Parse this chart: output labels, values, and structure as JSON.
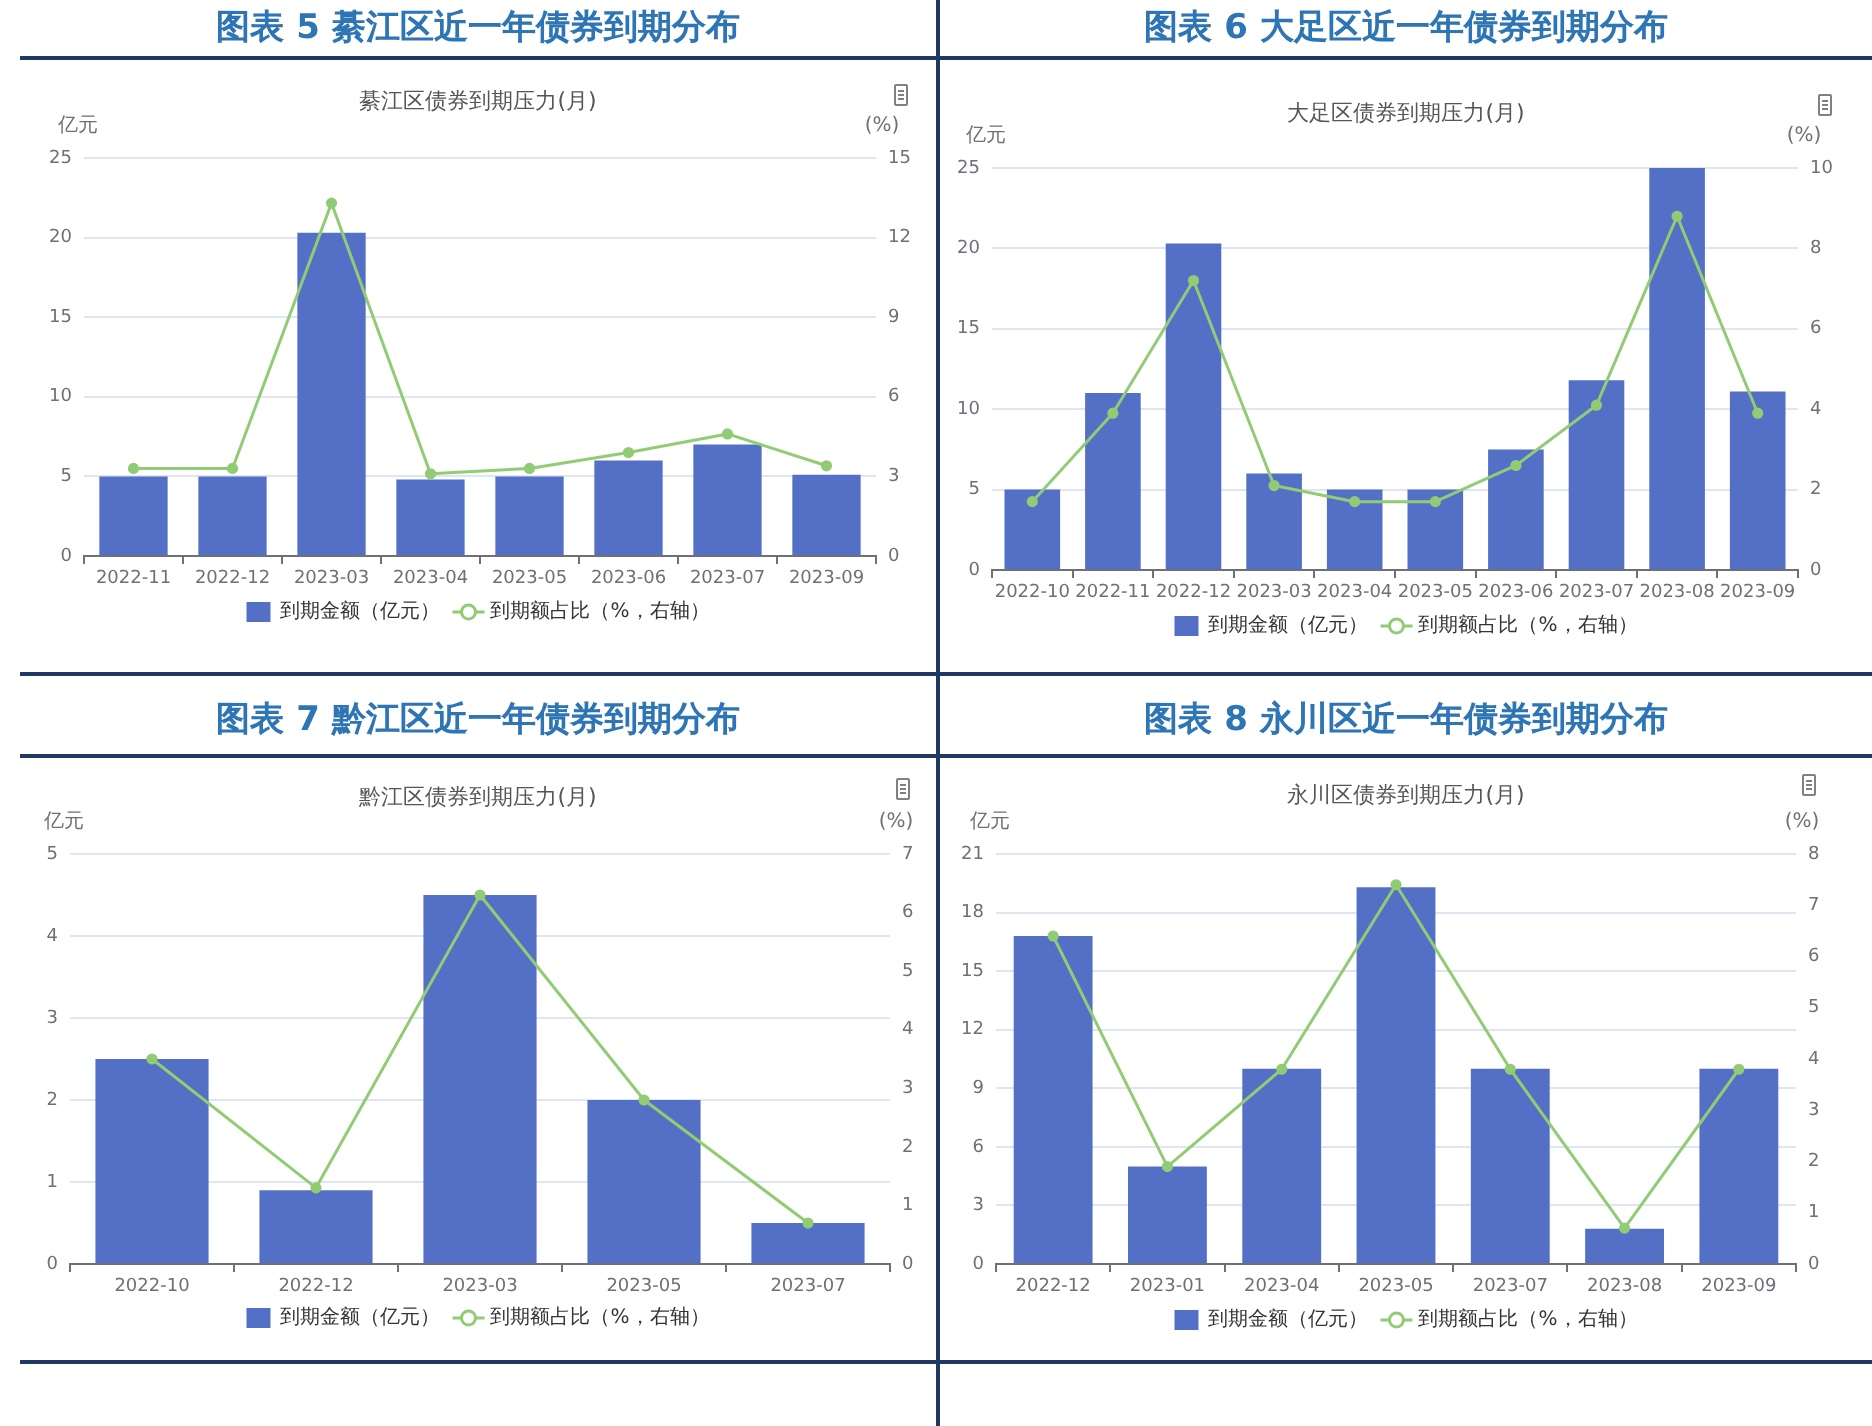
{
  "chart_data": [
    {
      "type": "bar",
      "title": "图表 5 綦江区近一年债券到期分布",
      "subtitle": "綦江区债券到期压力(月)",
      "ylabel": "亿元",
      "y2label": "(%)",
      "categories": [
        "2022-11",
        "2022-12",
        "2023-03",
        "2023-04",
        "2023-05",
        "2023-06",
        "2023-07",
        "2023-09"
      ],
      "series": [
        {
          "name": "到期金额（亿元）",
          "color": "#5470c6",
          "values": [
            5,
            5,
            20.3,
            4.8,
            5,
            6,
            7,
            5.1
          ]
        },
        {
          "name": "到期额占比（%，右轴）",
          "type": "line",
          "axis": "y2",
          "color": "#91cc75",
          "values": [
            3.3,
            3.3,
            13.3,
            3.1,
            3.3,
            3.9,
            4.6,
            3.4
          ]
        }
      ],
      "ylim": [
        0,
        25
      ],
      "yticks": [
        0,
        5,
        10,
        15,
        20,
        25
      ],
      "y2lim": [
        0,
        15
      ],
      "y2ticks": [
        0,
        3,
        6,
        9,
        12,
        15
      ],
      "grid": "y",
      "legend": "bottom",
      "marker": "circle"
    },
    {
      "type": "bar",
      "title": "图表 6 大足区近一年债券到期分布",
      "subtitle": "大足区债券到期压力(月)",
      "ylabel": "亿元",
      "y2label": "(%)",
      "categories": [
        "2022-10",
        "2022-11",
        "2022-12",
        "2023-03",
        "2023-04",
        "2023-05",
        "2023-06",
        "2023-07",
        "2023-08",
        "2023-09"
      ],
      "series": [
        {
          "name": "到期金额（亿元）",
          "color": "#5470c6",
          "values": [
            5,
            11,
            20.3,
            6,
            5,
            5,
            7.5,
            11.8,
            25,
            11.1
          ]
        },
        {
          "name": "到期额占比（%，右轴）",
          "type": "line",
          "axis": "y2",
          "color": "#91cc75",
          "values": [
            1.7,
            3.9,
            7.2,
            2.1,
            1.7,
            1.7,
            2.6,
            4.1,
            8.8,
            3.9
          ]
        }
      ],
      "ylim": [
        0,
        25
      ],
      "yticks": [
        0,
        5,
        10,
        15,
        20,
        25
      ],
      "y2lim": [
        0,
        10
      ],
      "y2ticks": [
        0,
        2,
        4,
        6,
        8,
        10
      ],
      "grid": "y",
      "legend": "bottom",
      "marker": "circle"
    },
    {
      "type": "bar",
      "title": "图表 7 黔江区近一年债券到期分布",
      "subtitle": "黔江区债券到期压力(月)",
      "ylabel": "亿元",
      "y2label": "(%)",
      "categories": [
        "2022-10",
        "2022-12",
        "2023-03",
        "2023-05",
        "2023-07"
      ],
      "series": [
        {
          "name": "到期金额（亿元）",
          "color": "#5470c6",
          "values": [
            2.5,
            0.9,
            4.5,
            2,
            0.5
          ]
        },
        {
          "name": "到期额占比（%，右轴）",
          "type": "line",
          "axis": "y2",
          "color": "#91cc75",
          "values": [
            3.5,
            1.3,
            6.3,
            2.8,
            0.7
          ]
        }
      ],
      "ylim": [
        0,
        5
      ],
      "yticks": [
        0,
        1,
        2,
        3,
        4,
        5
      ],
      "y2lim": [
        0,
        7
      ],
      "y2ticks": [
        0,
        1,
        2,
        3,
        4,
        5,
        6,
        7
      ],
      "grid": "y",
      "legend": "bottom",
      "marker": "circle"
    },
    {
      "type": "bar",
      "title": "图表 8 永川区近一年债券到期分布",
      "subtitle": "永川区债券到期压力(月)",
      "ylabel": "亿元",
      "y2label": "(%)",
      "categories": [
        "2022-12",
        "2023-01",
        "2023-04",
        "2023-05",
        "2023-07",
        "2023-08",
        "2023-09"
      ],
      "series": [
        {
          "name": "到期金额（亿元）",
          "color": "#5470c6",
          "values": [
            16.8,
            5,
            10,
            19.3,
            10,
            1.8,
            10
          ]
        },
        {
          "name": "到期额占比（%，右轴）",
          "type": "line",
          "axis": "y2",
          "color": "#91cc75",
          "values": [
            6.4,
            1.9,
            3.8,
            7.4,
            3.8,
            0.7,
            3.8
          ]
        }
      ],
      "ylim": [
        0,
        21
      ],
      "yticks": [
        0,
        3,
        6,
        9,
        12,
        15,
        18,
        21
      ],
      "y2lim": [
        0,
        8
      ],
      "y2ticks": [
        0,
        1,
        2,
        3,
        4,
        5,
        6,
        7,
        8
      ],
      "grid": "y",
      "legend": "bottom",
      "marker": "circle"
    }
  ]
}
